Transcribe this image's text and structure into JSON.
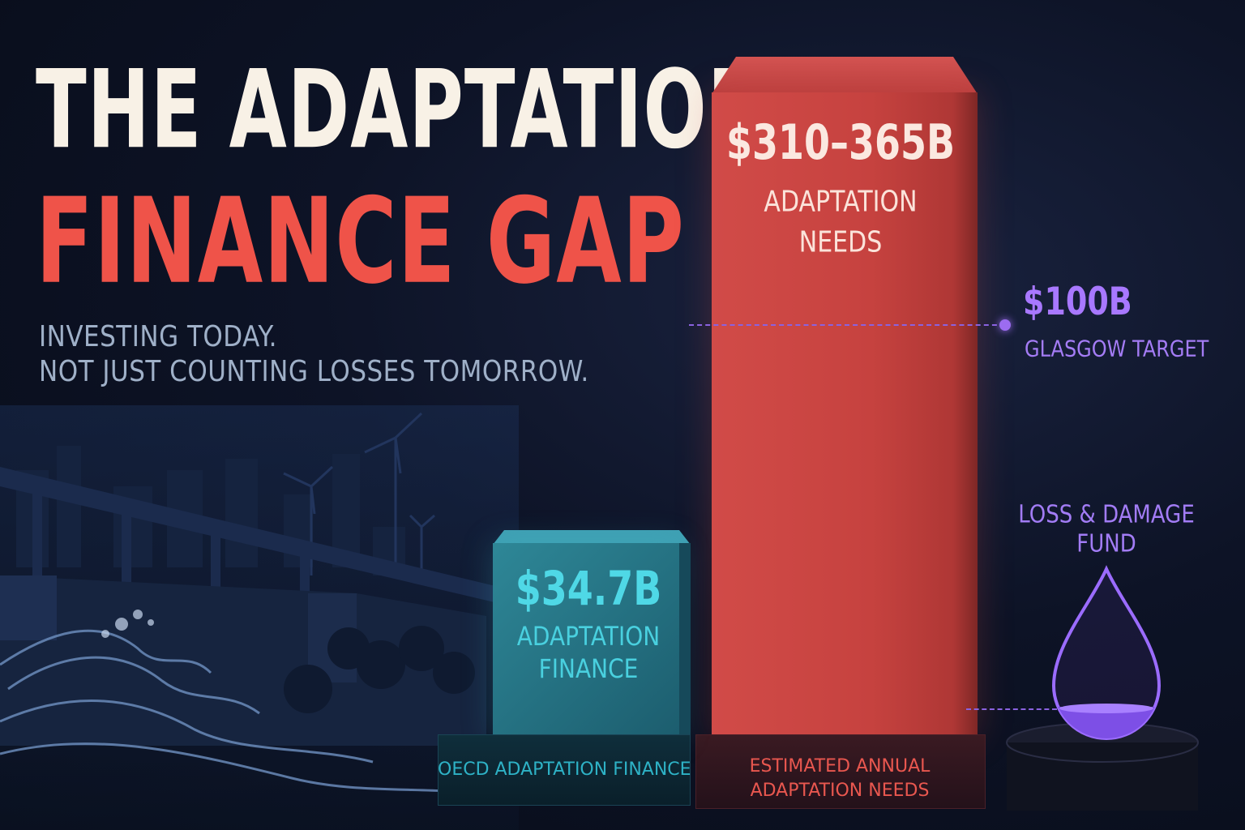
{
  "title": {
    "line1": "THE ADAPTATION",
    "line2": "FINANCE GAP"
  },
  "subtitle": {
    "line1": "INVESTING TODAY.",
    "line2": "NOT JUST COUNTING LOSSES TOMORROW."
  },
  "needs": {
    "value": "$310–365B",
    "label_line1": "ADAPTATION",
    "label_line2": "NEEDS",
    "base_line1": "ESTIMATED ANNUAL",
    "base_line2": "ADAPTATION NEEDS"
  },
  "finance": {
    "value": "$34.7B",
    "label_line1": "ADAPTATION",
    "label_line2": "FINANCE",
    "base_label": "OECD ADAPTATION FINANCE"
  },
  "target": {
    "value": "$100B",
    "label": "GLASGOW TARGET"
  },
  "loss_damage": {
    "label_line1": "LOSS & DAMAGE",
    "label_line2": "FUND",
    "icon": "droplet-icon"
  },
  "colors": {
    "title_light": "#f8f1e6",
    "accent_red": "#ef5349",
    "accent_teal": "#4fd8e6",
    "accent_purple": "#a878ff",
    "subtitle_gray": "#9fb0c8"
  }
}
